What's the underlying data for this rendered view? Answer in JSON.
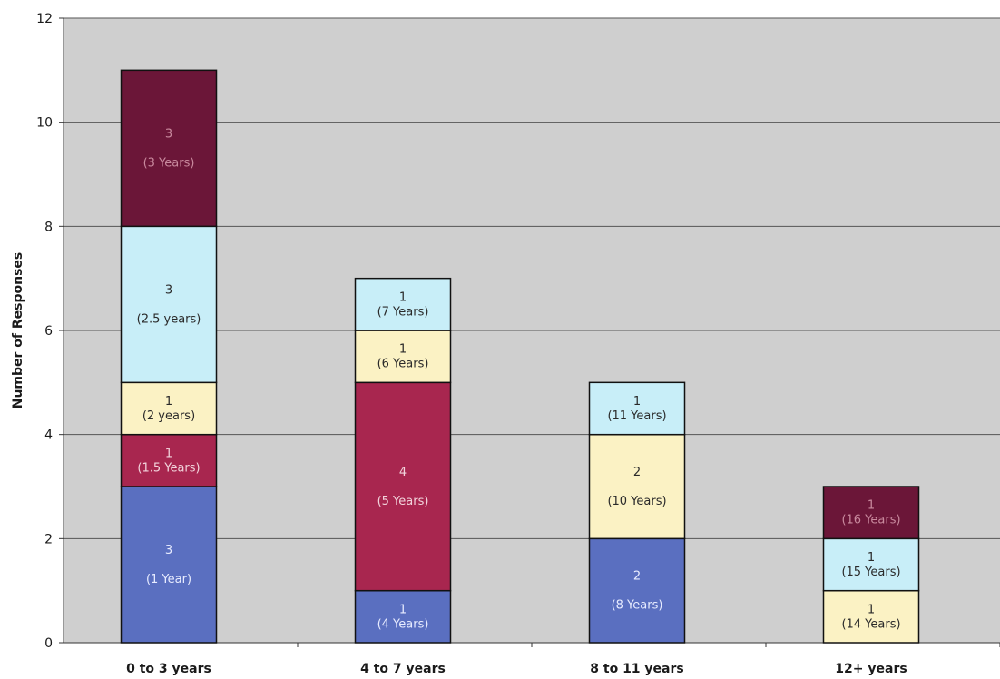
{
  "chart_data": {
    "type": "bar",
    "stacked": true,
    "title": "",
    "xlabel": "",
    "ylabel": "Number of Responses",
    "ylim": [
      0,
      12
    ],
    "yticks": [
      "0",
      "2",
      "4",
      "6",
      "8",
      "10",
      "12"
    ],
    "grid": true,
    "legend": "none",
    "categories": [
      "0 to 3 years",
      "4 to 7 years",
      "8 to 11 years",
      "12+ years"
    ],
    "stacks": [
      [
        {
          "value": 3,
          "label": "3",
          "sublabel": "(1 Year)",
          "color": "#5a6fc0",
          "text_color": "#e8ecff"
        },
        {
          "value": 1,
          "label": "1",
          "sublabel": "(1.5 Years)",
          "color": "#a8264f",
          "text_color": "#f2d4dc"
        },
        {
          "value": 1,
          "label": "1",
          "sublabel": "(2 years)",
          "color": "#fbf2c4",
          "text_color": "#2a2a2a"
        },
        {
          "value": 3,
          "label": "3",
          "sublabel": "(2.5 years)",
          "color": "#c8eef8",
          "text_color": "#2a2a2a"
        },
        {
          "value": 3,
          "label": "3",
          "sublabel": "(3 Years)",
          "color": "#6b1638",
          "text_color": "#c98a9e"
        }
      ],
      [
        {
          "value": 1,
          "label": "1",
          "sublabel": "(4 Years)",
          "color": "#5a6fc0",
          "text_color": "#e8ecff"
        },
        {
          "value": 4,
          "label": "4",
          "sublabel": "(5 Years)",
          "color": "#a8264f",
          "text_color": "#f2d4dc"
        },
        {
          "value": 1,
          "label": "1",
          "sublabel": "(6 Years)",
          "color": "#fbf2c4",
          "text_color": "#2a2a2a"
        },
        {
          "value": 1,
          "label": "1",
          "sublabel": "(7 Years)",
          "color": "#c8eef8",
          "text_color": "#2a2a2a"
        }
      ],
      [
        {
          "value": 2,
          "label": "2",
          "sublabel": "(8 Years)",
          "color": "#5a6fc0",
          "text_color": "#e8ecff"
        },
        {
          "value": 2,
          "label": "2",
          "sublabel": "(10 Years)",
          "color": "#fbf2c4",
          "text_color": "#2a2a2a"
        },
        {
          "value": 1,
          "label": "1",
          "sublabel": "(11 Years)",
          "color": "#c8eef8",
          "text_color": "#2a2a2a"
        }
      ],
      [
        {
          "value": 1,
          "label": "1",
          "sublabel": "(14 Years)",
          "color": "#fbf2c4",
          "text_color": "#2a2a2a"
        },
        {
          "value": 1,
          "label": "1",
          "sublabel": "(15 Years)",
          "color": "#c8eef8",
          "text_color": "#2a2a2a"
        },
        {
          "value": 1,
          "label": "1",
          "sublabel": "(16 Years)",
          "color": "#6b1638",
          "text_color": "#c98a9e"
        }
      ]
    ],
    "colors": {
      "plot_background": "#cfcfcf",
      "gridline": "#555555",
      "bar_border": "#111111"
    }
  }
}
